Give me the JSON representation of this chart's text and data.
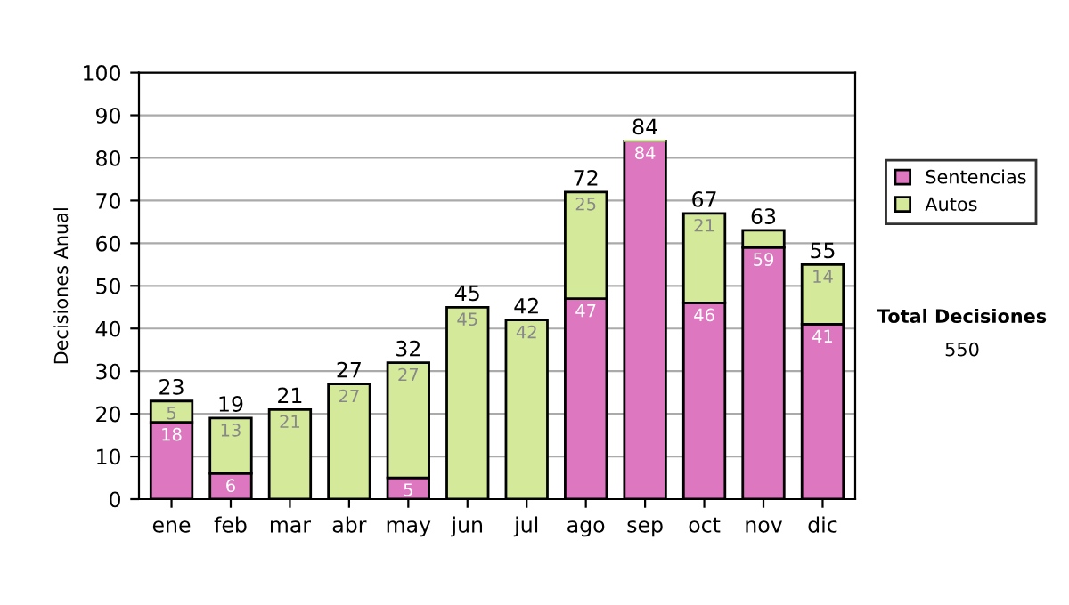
{
  "chart_data": {
    "type": "bar",
    "stacked": true,
    "ylabel": "Decisiones Anual",
    "categories": [
      "ene",
      "feb",
      "mar",
      "abr",
      "may",
      "jun",
      "jul",
      "ago",
      "sep",
      "oct",
      "nov",
      "dic"
    ],
    "series": [
      {
        "name": "Sentencias",
        "color": "#dd77c0",
        "values": [
          18,
          6,
          0,
          0,
          5,
          0,
          0,
          47,
          84,
          46,
          59,
          41
        ],
        "value_labels": [
          "18",
          "6",
          null,
          null,
          "5",
          null,
          null,
          "47",
          "84",
          "46",
          "59",
          "41"
        ]
      },
      {
        "name": "Autos",
        "color": "#d4e99a",
        "values": [
          5,
          13,
          21,
          27,
          27,
          45,
          42,
          25,
          0,
          21,
          4,
          14
        ],
        "value_labels": [
          "5",
          "13",
          "21",
          "27",
          "27",
          "45",
          "42",
          "25",
          null,
          "21",
          null,
          "14"
        ]
      }
    ],
    "totals": [
      "23",
      "19",
      "21",
      "27",
      "32",
      "45",
      "42",
      "72",
      "84",
      "67",
      "63",
      "55"
    ],
    "ylim": [
      0,
      100
    ],
    "yticks": [
      0,
      10,
      20,
      30,
      40,
      50,
      60,
      70,
      80,
      90,
      100
    ],
    "grid": "y",
    "legend": "right",
    "annotations": [
      "Total Decisiones",
      "550"
    ]
  }
}
